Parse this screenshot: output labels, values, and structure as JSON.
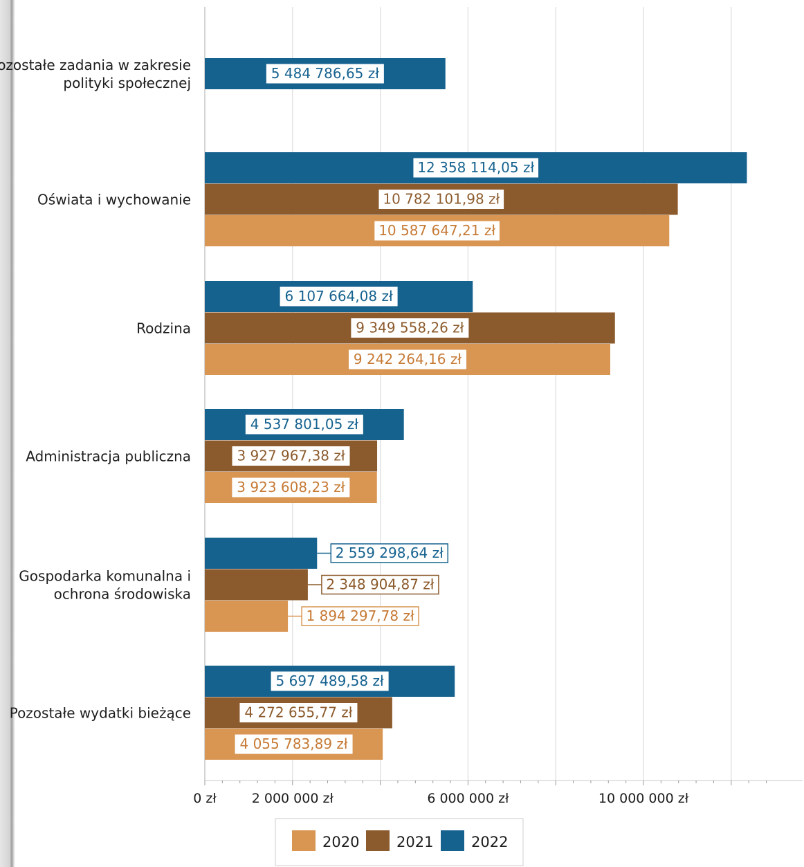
{
  "chart_data": {
    "type": "bar",
    "orientation": "horizontal",
    "title": "",
    "xlabel": "",
    "ylabel": "",
    "categories": [
      "Pozostałe zadania w zakresie polityki społecznej",
      "Oświata i wychowanie",
      "Rodzina",
      "Administracja publiczna",
      "Gospodarka komunalna i ochrona środowiska",
      "Pozostałe wydatki bieżące"
    ],
    "category_lines": [
      [
        "Pozostałe zadania w zakresie",
        "polityki społecznej"
      ],
      [
        "Oświata i wychowanie"
      ],
      [
        "Rodzina"
      ],
      [
        "Administracja publiczna"
      ],
      [
        "Gospodarka komunalna i",
        "ochrona środowiska"
      ],
      [
        "Pozostałe wydatki bieżące"
      ]
    ],
    "series": [
      {
        "name": "2022",
        "color": "#16628f",
        "values": [
          5484786.65,
          12358114.05,
          6107664.08,
          4537801.05,
          2559298.64,
          5697489.58
        ],
        "labels": [
          "5 484 786,65 zł",
          "12 358 114,05 zł",
          "6 107 664,08 zł",
          "4 537 801,05 zł",
          "2 559 298,64 zł",
          "5 697 489,58 zł"
        ]
      },
      {
        "name": "2021",
        "color": "#8c5b2d",
        "values": [
          null,
          10782101.98,
          9349558.26,
          3927967.38,
          2348904.87,
          4272655.77
        ],
        "labels": [
          null,
          "10 782 101,98 zł",
          "9 349 558,26 zł",
          "3 927 967,38 zł",
          "2 348 904,87 zł",
          "4 272 655,77 zł"
        ]
      },
      {
        "name": "2020",
        "color": "#d99552",
        "values": [
          null,
          10587647.21,
          9242264.16,
          3923608.23,
          1894297.78,
          4055783.89
        ],
        "labels": [
          null,
          "10 587 647,21 zł",
          "9 242 264,16 zł",
          "3 923 608,23 zł",
          "1 894 297,78 zł",
          "4 055 783,89 zł"
        ]
      }
    ],
    "xlim": [
      0,
      13000000
    ],
    "x_ticks": [
      {
        "value": 0,
        "label": "0 zł"
      },
      {
        "value": 2000000,
        "label": "2 000 000 zł"
      },
      {
        "value": 6000000,
        "label": "6 000 000 zł"
      },
      {
        "value": 10000000,
        "label": "10 000 000 zł"
      }
    ],
    "gridlines": [
      2000000,
      4000000,
      6000000,
      8000000,
      10000000,
      12000000
    ],
    "grid": true,
    "legend": {
      "position": "bottom",
      "order": [
        "2020",
        "2021",
        "2022"
      ]
    }
  }
}
